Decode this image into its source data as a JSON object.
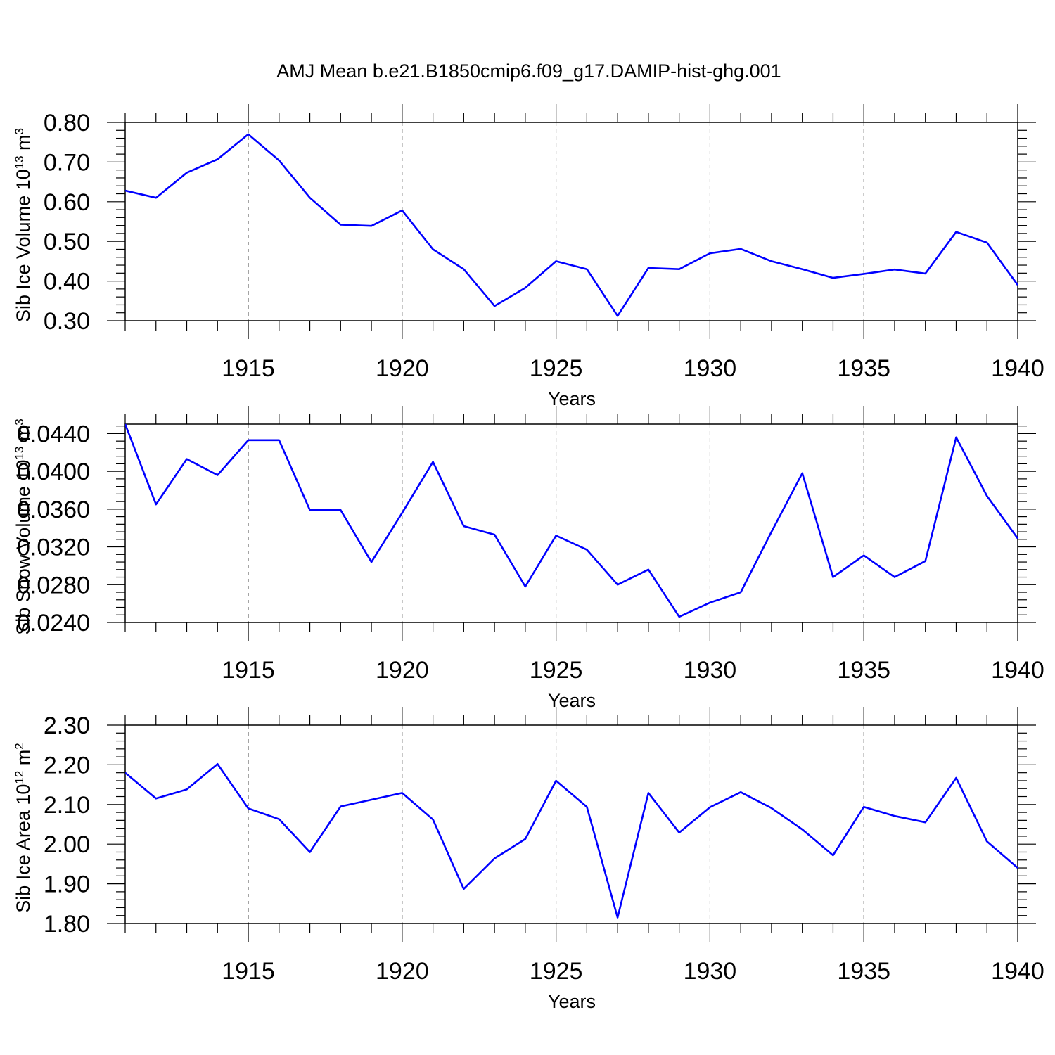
{
  "title": "AMJ Mean b.e21.B1850cmip6.f09_g17.DAMIP-hist-ghg.001",
  "colors": {
    "line": "#0000ff",
    "axis": "#000000",
    "grid": "#555555"
  },
  "chart_data": [
    {
      "type": "line",
      "xlabel": "Years",
      "ylabel": "Sib Ice Volume 10",
      "ylabel_exp": "13",
      "ylabel_unit": " m",
      "ylabel_unit_exp": "3",
      "xlim": [
        1911,
        1940
      ],
      "ylim": [
        0.3,
        0.8
      ],
      "xticks": [
        1915,
        1920,
        1925,
        1930,
        1935,
        1940
      ],
      "yticks": [
        "0.80",
        "0.70",
        "0.60",
        "0.50",
        "0.40",
        "0.30"
      ],
      "ytick_values": [
        0.8,
        0.7,
        0.6,
        0.5,
        0.4,
        0.3
      ],
      "grid": "dashed vertical at major x ticks",
      "series": [
        {
          "x": [
            1911,
            1912,
            1913,
            1914,
            1915,
            1916,
            1917,
            1918,
            1919,
            1920,
            1921,
            1922,
            1923,
            1924,
            1925,
            1926,
            1927,
            1928,
            1929,
            1930,
            1931,
            1932,
            1933,
            1934,
            1935,
            1936,
            1937,
            1938,
            1939,
            1940
          ],
          "values": [
            0.628,
            0.61,
            0.673,
            0.707,
            0.77,
            0.704,
            0.61,
            0.542,
            0.539,
            0.578,
            0.48,
            0.43,
            0.337,
            0.383,
            0.45,
            0.43,
            0.312,
            0.433,
            0.43,
            0.47,
            0.481,
            0.45,
            0.43,
            0.408,
            0.418,
            0.429,
            0.419,
            0.524,
            0.497,
            0.39
          ]
        }
      ]
    },
    {
      "type": "line",
      "xlabel": "Years",
      "ylabel": "Sib Snow Volume 10",
      "ylabel_exp": "13",
      "ylabel_unit": " m",
      "ylabel_unit_exp": "3",
      "xlim": [
        1911,
        1940
      ],
      "ylim": [
        0.024,
        0.045
      ],
      "xticks": [
        1915,
        1920,
        1925,
        1930,
        1935,
        1940
      ],
      "yticks": [
        "0.0440",
        "0.0400",
        "0.0360",
        "0.0320",
        "0.0280",
        "0.0240"
      ],
      "ytick_values": [
        0.044,
        0.04,
        0.036,
        0.032,
        0.028,
        0.024
      ],
      "grid": "dashed vertical at major x ticks",
      "series": [
        {
          "x": [
            1911,
            1912,
            1913,
            1914,
            1915,
            1916,
            1917,
            1918,
            1919,
            1920,
            1921,
            1922,
            1923,
            1924,
            1925,
            1926,
            1927,
            1928,
            1929,
            1930,
            1931,
            1932,
            1933,
            1934,
            1935,
            1936,
            1937,
            1938,
            1939,
            1940
          ],
          "values": [
            0.045,
            0.0365,
            0.0413,
            0.0396,
            0.0433,
            0.0433,
            0.0359,
            0.0359,
            0.0304,
            0.0356,
            0.041,
            0.0342,
            0.0333,
            0.0278,
            0.0332,
            0.0317,
            0.028,
            0.0296,
            0.0246,
            0.0261,
            0.0272,
            0.0336,
            0.0398,
            0.0288,
            0.0311,
            0.0288,
            0.0305,
            0.0436,
            0.0374,
            0.0329
          ]
        }
      ]
    },
    {
      "type": "line",
      "xlabel": "Years",
      "ylabel": "Sib Ice Area 10",
      "ylabel_exp": "12",
      "ylabel_unit": " m",
      "ylabel_unit_exp": "2",
      "xlim": [
        1911,
        1940
      ],
      "ylim": [
        1.8,
        2.3
      ],
      "xticks": [
        1915,
        1920,
        1925,
        1930,
        1935,
        1940
      ],
      "yticks": [
        "2.30",
        "2.20",
        "2.10",
        "2.00",
        "1.90",
        "1.80"
      ],
      "ytick_values": [
        2.3,
        2.2,
        2.1,
        2.0,
        1.9,
        1.8
      ],
      "grid": "dashed vertical at major x ticks",
      "series": [
        {
          "x": [
            1911,
            1912,
            1913,
            1914,
            1915,
            1916,
            1917,
            1918,
            1919,
            1920,
            1921,
            1922,
            1923,
            1924,
            1925,
            1926,
            1927,
            1928,
            1929,
            1930,
            1931,
            1932,
            1933,
            1934,
            1935,
            1936,
            1937,
            1938,
            1939,
            1940
          ],
          "values": [
            2.18,
            2.115,
            2.138,
            2.202,
            2.09,
            2.063,
            1.98,
            2.095,
            2.112,
            2.129,
            2.062,
            1.887,
            1.964,
            2.013,
            2.16,
            2.094,
            1.815,
            2.129,
            2.029,
            2.093,
            2.131,
            2.091,
            2.037,
            1.972,
            2.094,
            2.071,
            2.055,
            2.167,
            2.007,
            1.94
          ]
        }
      ]
    }
  ]
}
